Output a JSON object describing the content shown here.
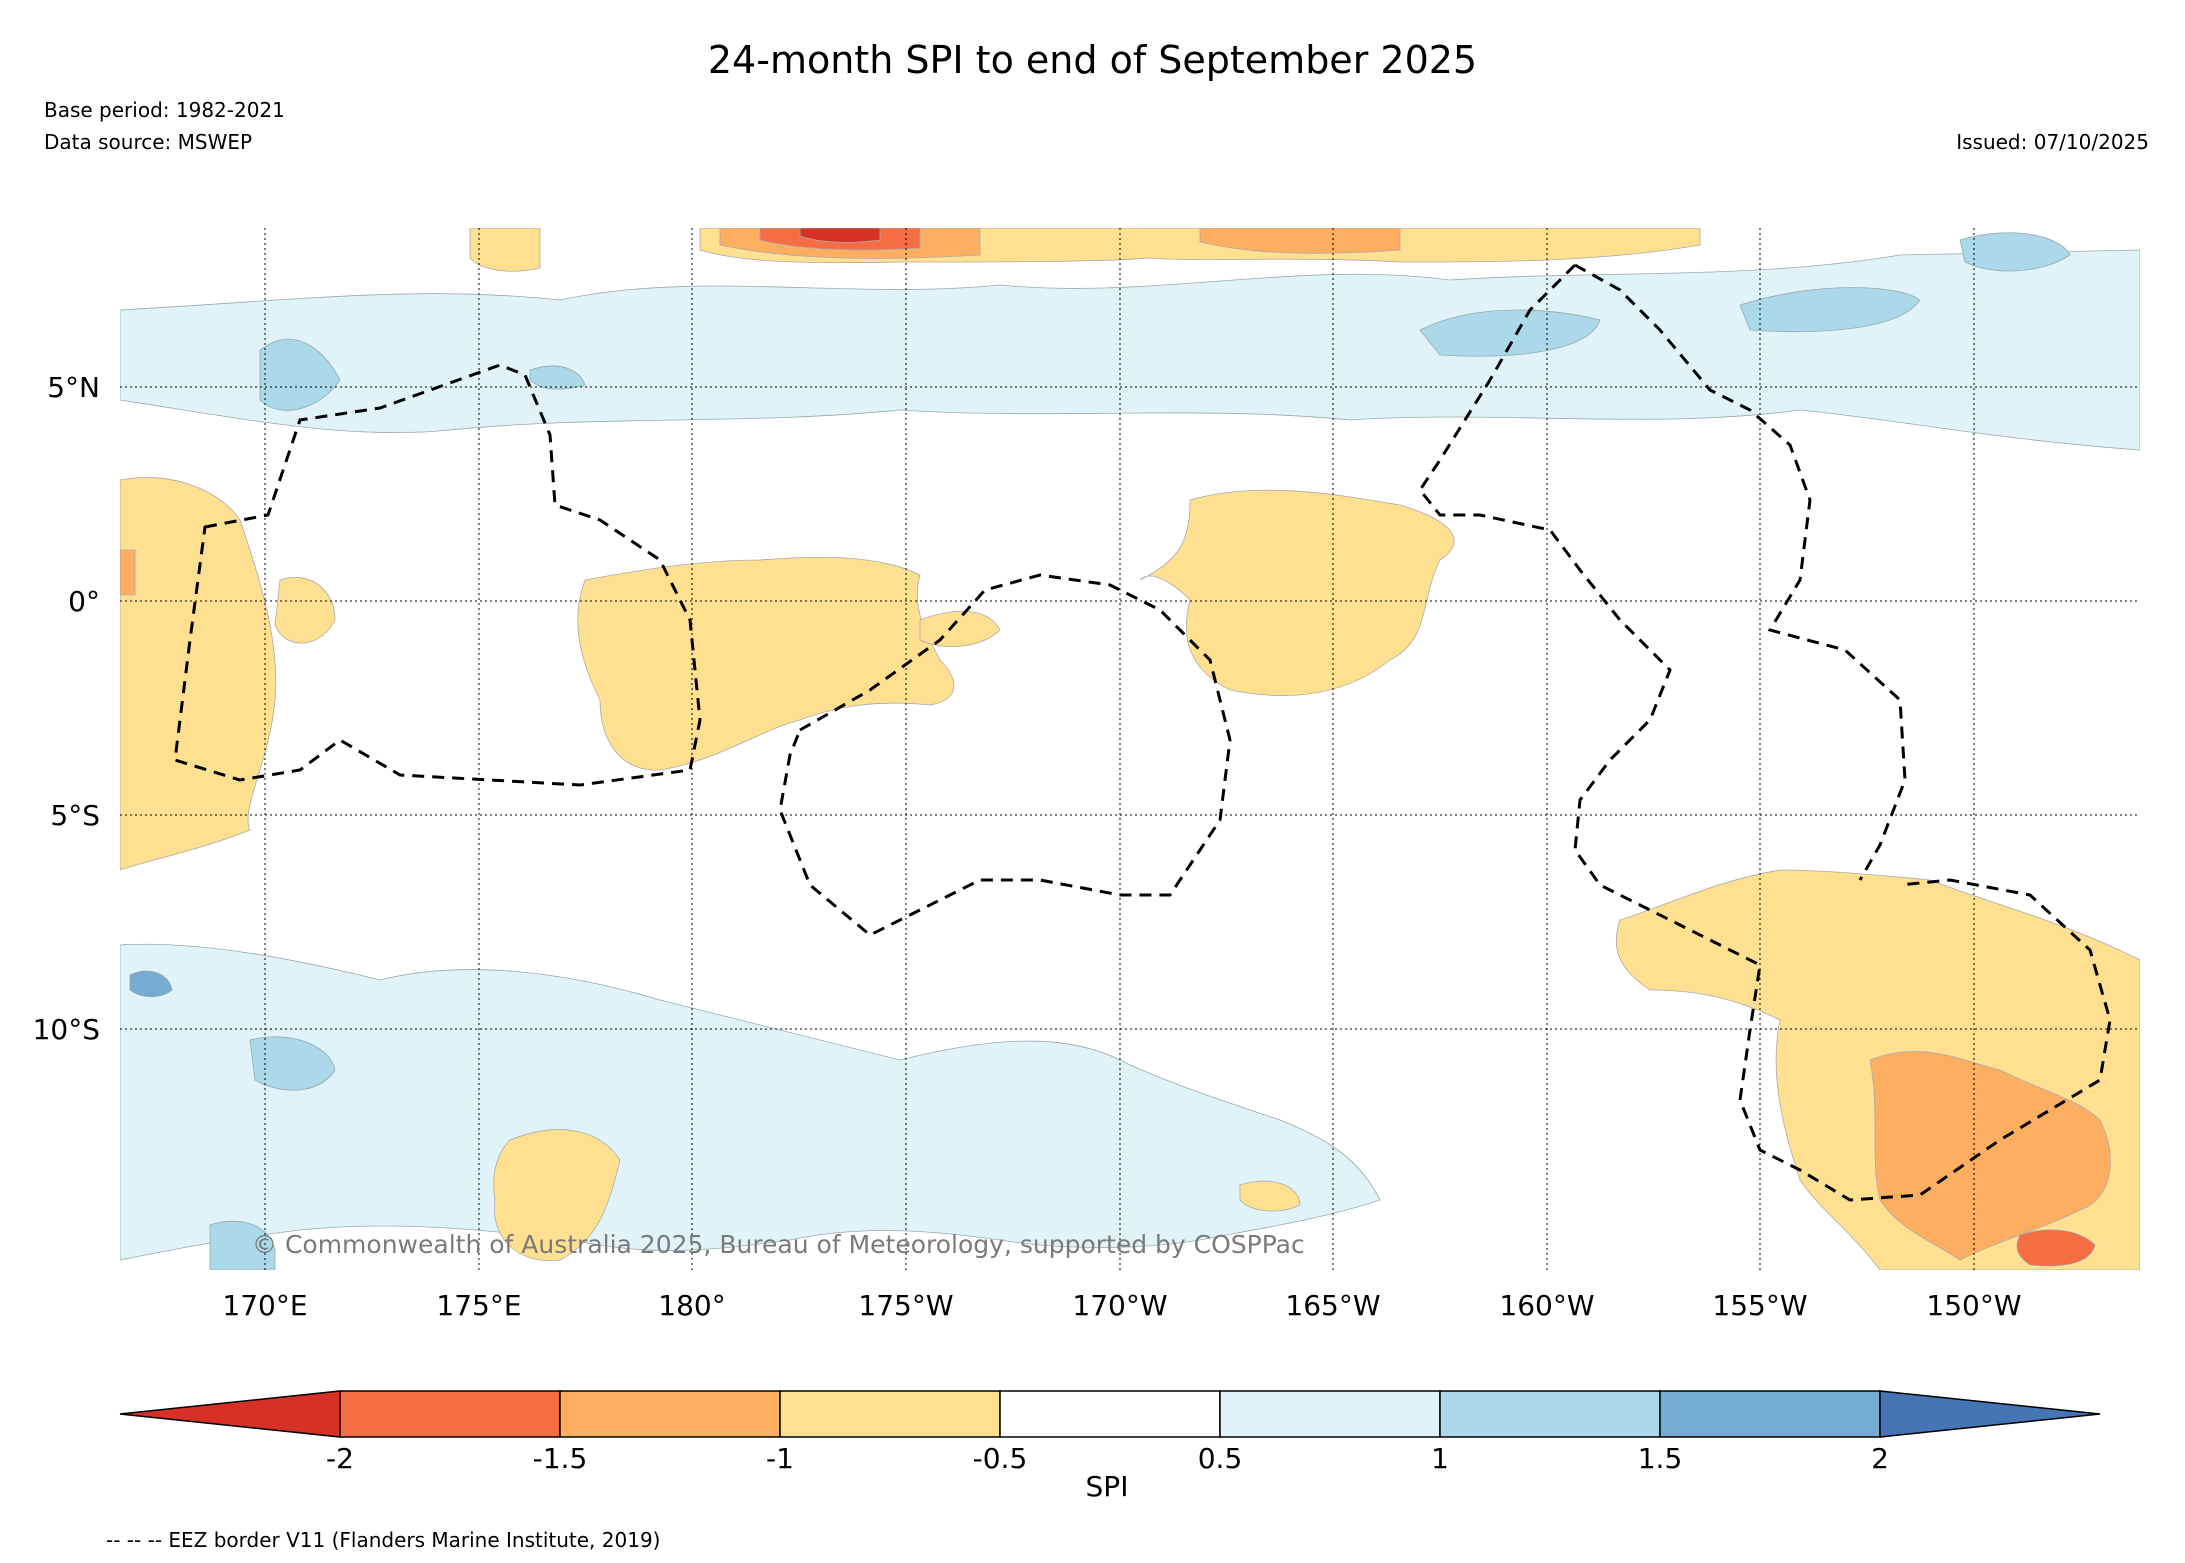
{
  "title": "24-month SPI to end of September 2025",
  "base_period": "Base period: 1982-2021",
  "data_source": "Data source: MSWEP",
  "issued": "Issued: 07/10/2025",
  "copyright": "© Commonwealth of Australia 2025, Bureau of Meteorology, supported by COSPPac",
  "eez_note": "-- -- -- EEZ border V11 (Flanders Marine Institute, 2019)",
  "map": {
    "lat_labels": [
      "5°N",
      "0°",
      "5°S",
      "10°S"
    ],
    "lon_labels": [
      "170°E",
      "175°E",
      "180°",
      "175°W",
      "170°W",
      "165°W",
      "160°W",
      "155°W",
      "150°W"
    ]
  },
  "colorbar": {
    "label": "SPI",
    "ticks": [
      "-2",
      "-1.5",
      "-1",
      "-0.5",
      "0.5",
      "1",
      "1.5",
      "2"
    ],
    "colors": [
      "#d73027",
      "#f46d43",
      "#fdae61",
      "#fee090",
      "#ffffff",
      "#e0f3f8",
      "#abd9e9",
      "#74add1",
      "#4575b4"
    ]
  }
}
